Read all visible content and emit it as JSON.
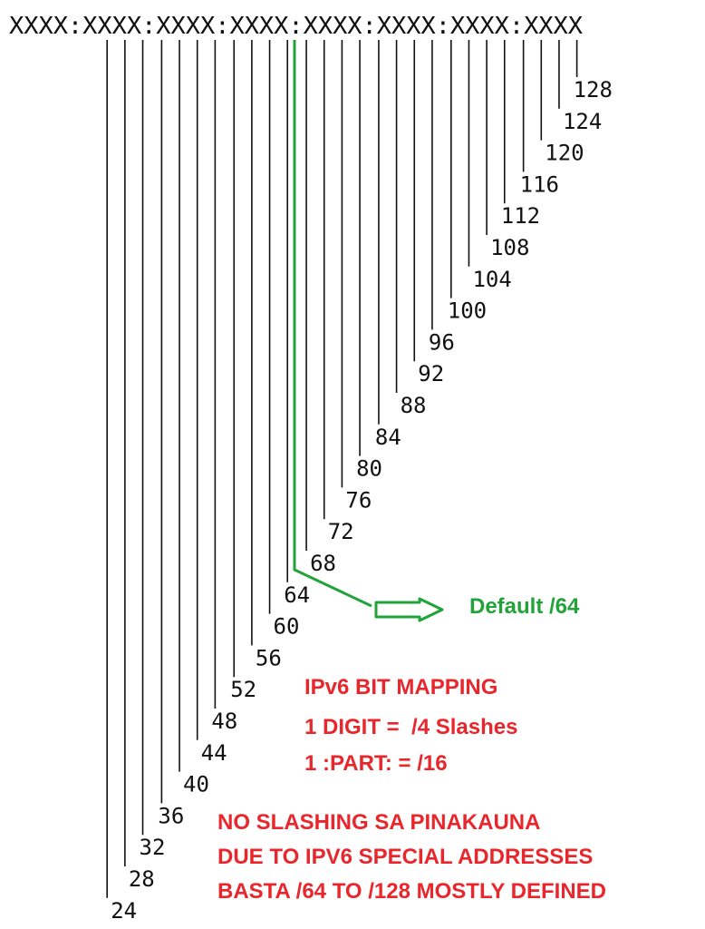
{
  "header": {
    "address_template": "XXXX:XXXX:XXXX:XXXX:XXXX:XXXX:XXXX:XXXX"
  },
  "prefix_marks": {
    "values": [
      128,
      124,
      120,
      116,
      112,
      108,
      104,
      100,
      96,
      92,
      88,
      84,
      80,
      76,
      72,
      68,
      64,
      60,
      56,
      52,
      48,
      44,
      40,
      36,
      32,
      28,
      24
    ]
  },
  "default_callout": {
    "label": "Default /64",
    "color": "#22a33a"
  },
  "mapping_note": {
    "title": "IPv6 BIT MAPPING",
    "line1": "1 DIGIT =  /4 Slashes",
    "line2": "1 :PART: = /16"
  },
  "footer_note": {
    "line1": "NO SLASHING SA PINAKAUNA",
    "line2": "DUE TO IPV6 SPECIAL ADDRESSES",
    "line3": "BASTA /64 TO /128 MOSTLY DEFINED"
  },
  "colors": {
    "ink": "#111111",
    "accent_red": "#e8262b",
    "accent_green": "#22a33a"
  }
}
